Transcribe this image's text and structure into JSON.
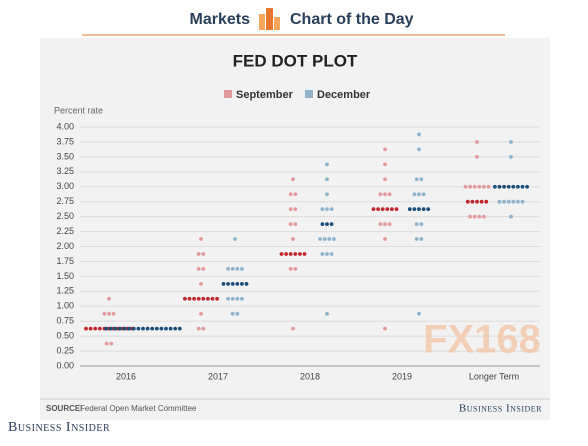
{
  "header": {
    "section": "Markets",
    "feature": "Chart of the Day"
  },
  "chart_data": {
    "type": "dot",
    "title": "FED DOT PLOT",
    "y_label": "Percent rate",
    "categories": [
      "2016",
      "2017",
      "2018",
      "2019",
      "Longer Term"
    ],
    "ylim": [
      0,
      4
    ],
    "yticks": [
      {
        "value": 0,
        "label": "0.00"
      },
      0.25,
      {
        "value": 0.5,
        "label": "0.50"
      },
      0.75,
      {
        "value": 1,
        "label": "1.00"
      },
      1.25,
      {
        "value": 1.5,
        "label": "1.50"
      },
      1.75,
      {
        "value": 2,
        "label": "2.00"
      },
      2.25,
      {
        "value": 2.5,
        "label": "2.50"
      },
      2.75,
      {
        "value": 3,
        "label": "3.00"
      },
      3.25,
      {
        "value": 3.5,
        "label": "3.50"
      },
      3.75,
      {
        "value": 4,
        "label": "4.00"
      }
    ],
    "grid": true,
    "series": [
      {
        "name": "September",
        "color": "#e39a9d",
        "highlight_color": "#c1272d",
        "values": [
          [
            1.125,
            0.875,
            0.625,
            0.375
          ],
          [
            2.125,
            1.875,
            1.625,
            1.375,
            1.125,
            0.875,
            0.625
          ],
          [
            3.125,
            2.875,
            2.625,
            2.375,
            2.125,
            1.875,
            1.625,
            0.625
          ],
          [
            3.625,
            3.375,
            3.125,
            2.875,
            2.625,
            2.375,
            2.125,
            0.625
          ],
          [
            3.75,
            3.5,
            3,
            2.75,
            2.5
          ]
        ],
        "counts": [
          [
            1,
            3,
            11,
            2
          ],
          [
            1,
            2,
            2,
            1,
            8,
            1,
            2
          ],
          [
            1,
            2,
            2,
            2,
            1,
            6,
            2,
            1
          ],
          [
            1,
            1,
            1,
            3,
            6,
            3,
            1,
            1
          ],
          [
            1,
            1,
            6,
            5,
            4
          ]
        ]
      },
      {
        "name": "December",
        "color": "#8fb3cd",
        "highlight_color": "#1c4e7a",
        "values": [
          [
            0.625
          ],
          [
            2.125,
            1.625,
            1.375,
            1.125,
            0.875
          ],
          [
            3.375,
            3.125,
            2.875,
            2.625,
            2.375,
            2.125,
            1.875,
            0.875
          ],
          [
            3.875,
            3.625,
            3.125,
            2.875,
            2.625,
            2.375,
            2.125,
            0.875
          ],
          [
            3.75,
            3.5,
            3,
            2.75,
            2.5
          ]
        ],
        "counts": [
          [
            17
          ],
          [
            1,
            4,
            6,
            4,
            2
          ],
          [
            1,
            1,
            1,
            3,
            3,
            4,
            3,
            1
          ],
          [
            1,
            1,
            2,
            3,
            5,
            2,
            2,
            1
          ],
          [
            1,
            1,
            8,
            6,
            1
          ]
        ]
      }
    ],
    "source_label": "SOURCE:",
    "source": "Federal Open Market Committee",
    "brand": "Business Insider",
    "watermark": "FX168"
  },
  "footer": {
    "brand": "Business Insider"
  }
}
